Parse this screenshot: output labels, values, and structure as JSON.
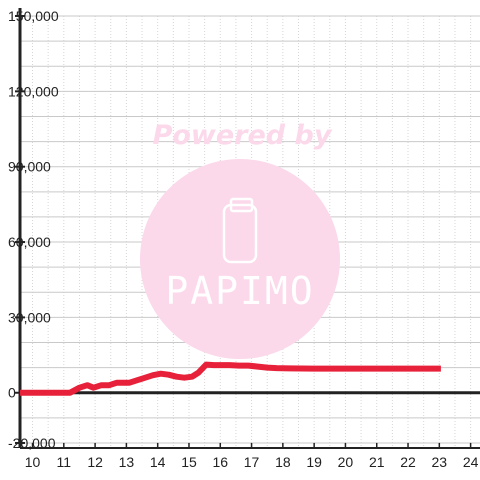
{
  "colors": {
    "series": "#e8213a",
    "axis": "#222222",
    "grid_major": "#c9c9c9",
    "grid_minor": "#d6d6d6",
    "watermark": "#fbd8ea"
  },
  "watermark": {
    "text": "Powered by",
    "logo": "PAPIMO",
    "icon": "phone-icon"
  },
  "chart_data": {
    "type": "line",
    "title": "",
    "xlabel": "",
    "ylabel": "",
    "xlim": [
      9.6,
      24.3
    ],
    "ylim": [
      -22000,
      150000
    ],
    "grid": true,
    "legend": "none",
    "x_ticks": [
      10,
      11,
      12,
      13,
      14,
      15,
      16,
      17,
      18,
      19,
      20,
      21,
      22,
      23,
      24
    ],
    "x_tick_labels": [
      "10",
      "11",
      "12",
      "13",
      "14",
      "15",
      "16",
      "17",
      "18",
      "19",
      "20",
      "21",
      "22",
      "23",
      "24"
    ],
    "y_ticks": [
      150000,
      120000,
      90000,
      60000,
      30000,
      0,
      -20000
    ],
    "y_tick_labels": [
      "150,000",
      "120,000",
      "90,000",
      "60,000",
      "30,000",
      "0",
      "-20,000"
    ],
    "series": [
      {
        "x": [
          9.6,
          11.2,
          11.5,
          11.75,
          11.95,
          12.2,
          12.45,
          12.7,
          12.9,
          13.1,
          13.35,
          13.6,
          13.85,
          14.1,
          14.35,
          14.6,
          14.85,
          15.1,
          15.3,
          15.55,
          15.8,
          16.05,
          16.3,
          16.6,
          16.9,
          17.2,
          17.5,
          17.8,
          18.2,
          19,
          20,
          21,
          22,
          23.05
        ],
        "y": [
          0,
          0,
          2000,
          3000,
          2000,
          3000,
          3000,
          4000,
          4000,
          4000,
          5000,
          6000,
          7000,
          7600,
          7200,
          6400,
          6000,
          6400,
          8000,
          11200,
          11000,
          11000,
          11000,
          10800,
          10800,
          10400,
          10000,
          9800,
          9700,
          9600,
          9600,
          9600,
          9600,
          9600
        ]
      }
    ]
  }
}
